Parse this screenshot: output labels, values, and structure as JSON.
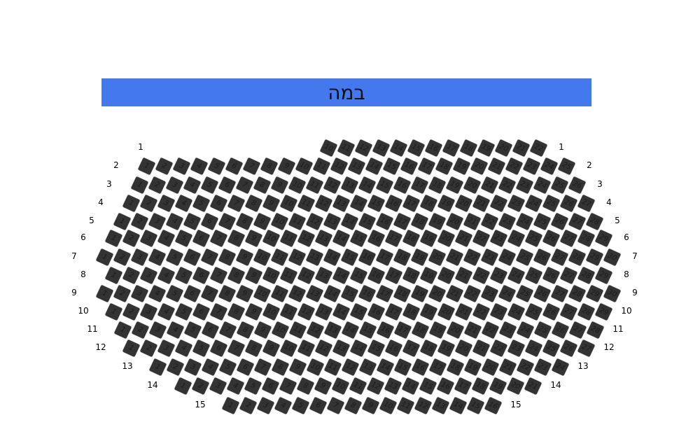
{
  "stage": {
    "label": "במה",
    "color": "#4479EE"
  },
  "seat_color": "#333333",
  "rows": [
    {
      "label": "1",
      "first": 10,
      "last": 22
    },
    {
      "label": "2",
      "first": 1,
      "last": 25
    },
    {
      "label": "3",
      "first": 1,
      "last": 26
    },
    {
      "label": "4",
      "first": 1,
      "last": 27
    },
    {
      "label": "5",
      "first": 1,
      "last": 28
    },
    {
      "label": "6",
      "first": 1,
      "last": 29
    },
    {
      "label": "7",
      "first": 1,
      "last": 30
    },
    {
      "label": "8",
      "first": 1,
      "last": 29
    },
    {
      "label": "9",
      "first": 1,
      "last": 30
    },
    {
      "label": "10",
      "first": 1,
      "last": 29
    },
    {
      "label": "11",
      "first": 1,
      "last": 28
    },
    {
      "label": "12",
      "first": 1,
      "last": 27
    },
    {
      "label": "13",
      "first": 1,
      "last": 24
    },
    {
      "label": "14",
      "first": 1,
      "last": 21
    },
    {
      "label": "15",
      "first": 1,
      "last": 16
    }
  ]
}
